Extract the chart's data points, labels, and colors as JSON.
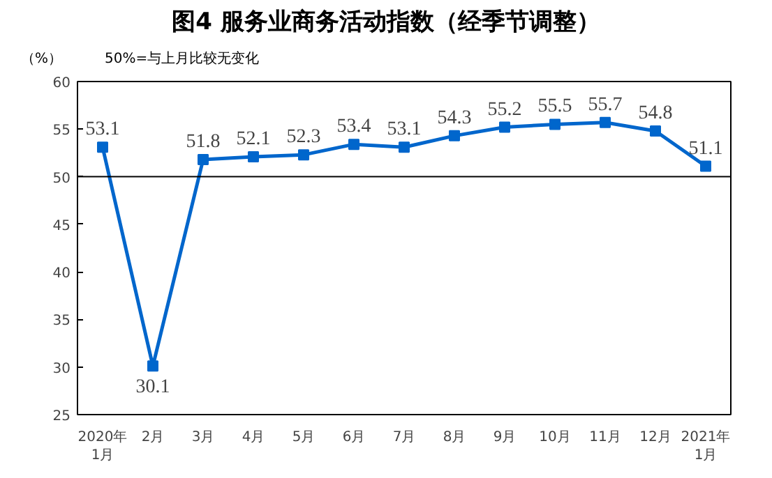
{
  "chart_data": {
    "type": "line",
    "title": "图4  服务业商务活动指数（经季节调整）",
    "ylabel": "（%）",
    "annotations": [
      "50%=与上月比较无变化"
    ],
    "categories": [
      "2020年\n1月",
      "2月",
      "3月",
      "4月",
      "5月",
      "6月",
      "7月",
      "8月",
      "9月",
      "10月",
      "11月",
      "12月",
      "2021年\n1月"
    ],
    "series": [
      {
        "color": "#0066cc",
        "values": [
          53.1,
          30.1,
          51.8,
          52.1,
          52.3,
          53.4,
          53.1,
          54.3,
          55.2,
          55.5,
          55.7,
          54.8,
          51.1
        ]
      }
    ],
    "ylim": [
      25,
      60
    ],
    "yticks": [
      25,
      30,
      35,
      40,
      45,
      50,
      55,
      60
    ],
    "ref_lines": [
      {
        "axis": "y",
        "value": 50,
        "color": "#000000"
      }
    ],
    "marker": "square",
    "line_style": "solid",
    "data_labels": true
  }
}
